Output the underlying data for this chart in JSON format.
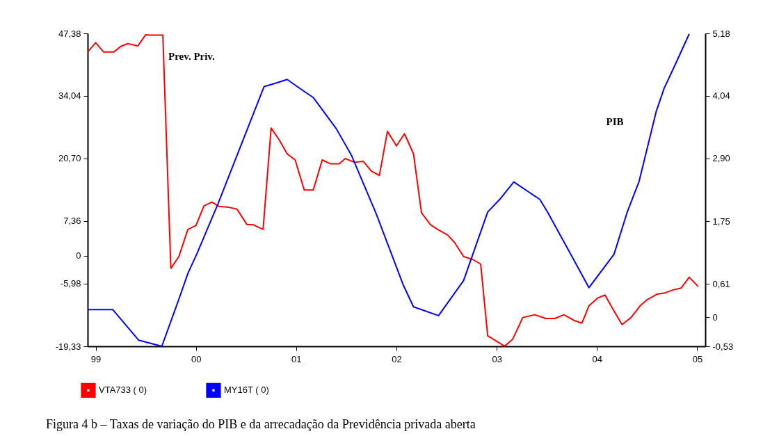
{
  "chart_data": {
    "type": "line",
    "annotations": [
      "Prev. Priv.",
      "PIB",
      "Figura 4 b – Taxas de variação do PIB e da arrecadação da Previdência privada aberta"
    ],
    "xlim": [
      1998.92,
      2005.08
    ],
    "xticks": [
      {
        "value": 1999,
        "label": "99"
      },
      {
        "value": 2000,
        "label": "00"
      },
      {
        "value": 2001,
        "label": "01"
      },
      {
        "value": 2002,
        "label": "02"
      },
      {
        "value": 2003,
        "label": "03"
      },
      {
        "value": 2004,
        "label": "04"
      },
      {
        "value": 2005,
        "label": "05"
      }
    ],
    "ylim": [
      -19.33,
      47.38
    ],
    "yticks": [
      {
        "value": -19.33,
        "label": "-19,33"
      },
      {
        "value": -5.98,
        "label": "-5,98"
      },
      {
        "value": 0,
        "label": "0"
      },
      {
        "value": 7.36,
        "label": "7,36"
      },
      {
        "value": 20.7,
        "label": "20,70"
      },
      {
        "value": 34.04,
        "label": "34,04"
      },
      {
        "value": 47.38,
        "label": "47,38"
      }
    ],
    "y2lim": [
      -0.53,
      5.18
    ],
    "y2ticks": [
      {
        "value": -0.53,
        "label": "-0,53"
      },
      {
        "value": 0,
        "label": "0"
      },
      {
        "value": 0.61,
        "label": "0,61"
      },
      {
        "value": 1.75,
        "label": "1,75"
      },
      {
        "value": 2.9,
        "label": "2,90"
      },
      {
        "value": 4.04,
        "label": "4,04"
      },
      {
        "value": 5.18,
        "label": "5,18"
      }
    ],
    "grid": false,
    "legend": "bottom left",
    "marker": "none",
    "line_style": "solid",
    "series": [
      {
        "name": "VTA733 ( 0)",
        "color": "#ff0000",
        "x": [
          1998.92,
          1999.0,
          1999.08,
          1999.18,
          1999.25,
          1999.32,
          1999.42,
          1999.5,
          1999.54,
          1999.67,
          1999.75,
          1999.83,
          1999.92,
          2000.0,
          2000.08,
          2000.16,
          2000.23,
          2000.33,
          2000.41,
          2000.51,
          2000.57,
          2000.67,
          2000.75,
          2000.83,
          2000.91,
          2000.99,
          2001.08,
          2001.17,
          2001.26,
          2001.34,
          2001.43,
          2001.49,
          2001.58,
          2001.67,
          2001.75,
          2001.83,
          2001.91,
          2002.0,
          2002.08,
          2002.17,
          2002.25,
          2002.34,
          2002.41,
          2002.51,
          2002.58,
          2002.67,
          2002.76,
          2002.84,
          2002.91,
          2003.08,
          2003.16,
          2003.26,
          2003.38,
          2003.49,
          2003.58,
          2003.67,
          2003.77,
          2003.85,
          2003.92,
          2004.01,
          2004.08,
          2004.17,
          2004.25,
          2004.34,
          2004.43,
          2004.5,
          2004.6,
          2004.67,
          2004.76,
          2004.84,
          2004.92,
          2005.01
        ],
        "values": [
          43.4,
          45.4,
          43.4,
          43.4,
          44.6,
          45.2,
          44.7,
          47.1,
          47.0,
          47.0,
          -2.7,
          -0.2,
          5.6,
          6.4,
          10.6,
          11.4,
          10.5,
          10.3,
          9.9,
          6.6,
          6.6,
          5.6,
          27.2,
          24.7,
          21.7,
          20.4,
          14.0,
          14.0,
          20.4,
          19.6,
          19.6,
          20.7,
          19.9,
          20.1,
          18.0,
          17.1,
          26.5,
          23.4,
          26.0,
          21.7,
          9.1,
          6.6,
          5.6,
          4.4,
          2.8,
          -0.2,
          -0.8,
          -1.8,
          -17.1,
          -19.3,
          -17.8,
          -13.2,
          -12.6,
          -13.4,
          -13.4,
          -12.6,
          -13.8,
          -14.4,
          -10.7,
          -9.0,
          -8.4,
          -11.8,
          -14.7,
          -13.2,
          -10.7,
          -9.4,
          -8.2,
          -8.0,
          -7.3,
          -6.9,
          -4.6,
          -6.6
        ]
      },
      {
        "name": "MY16T ( 0)",
        "color": "#0000ff",
        "axis": "y2",
        "x": [
          1998.92,
          1999.17,
          1999.43,
          1999.66,
          1999.83,
          1999.92,
          2000.01,
          2000.22,
          2000.68,
          2000.81,
          2000.91,
          2001.01,
          2001.17,
          2001.4,
          2001.55,
          2001.8,
          2002.07,
          2002.17,
          2002.42,
          2002.67,
          2002.91,
          2003.03,
          2003.17,
          2003.43,
          2003.51,
          2003.75,
          2003.92,
          2004.17,
          2004.3,
          2004.42,
          2004.59,
          2004.67,
          2004.76,
          2004.92
        ],
        "values": [
          0.14,
          0.14,
          -0.42,
          -0.53,
          0.33,
          0.8,
          1.16,
          2.07,
          4.21,
          4.28,
          4.34,
          4.21,
          4.01,
          3.44,
          2.96,
          1.88,
          0.58,
          0.19,
          0.03,
          0.67,
          1.92,
          2.15,
          2.47,
          2.15,
          1.91,
          1.11,
          0.54,
          1.15,
          1.91,
          2.48,
          3.75,
          4.18,
          4.53,
          5.17
        ]
      }
    ]
  }
}
